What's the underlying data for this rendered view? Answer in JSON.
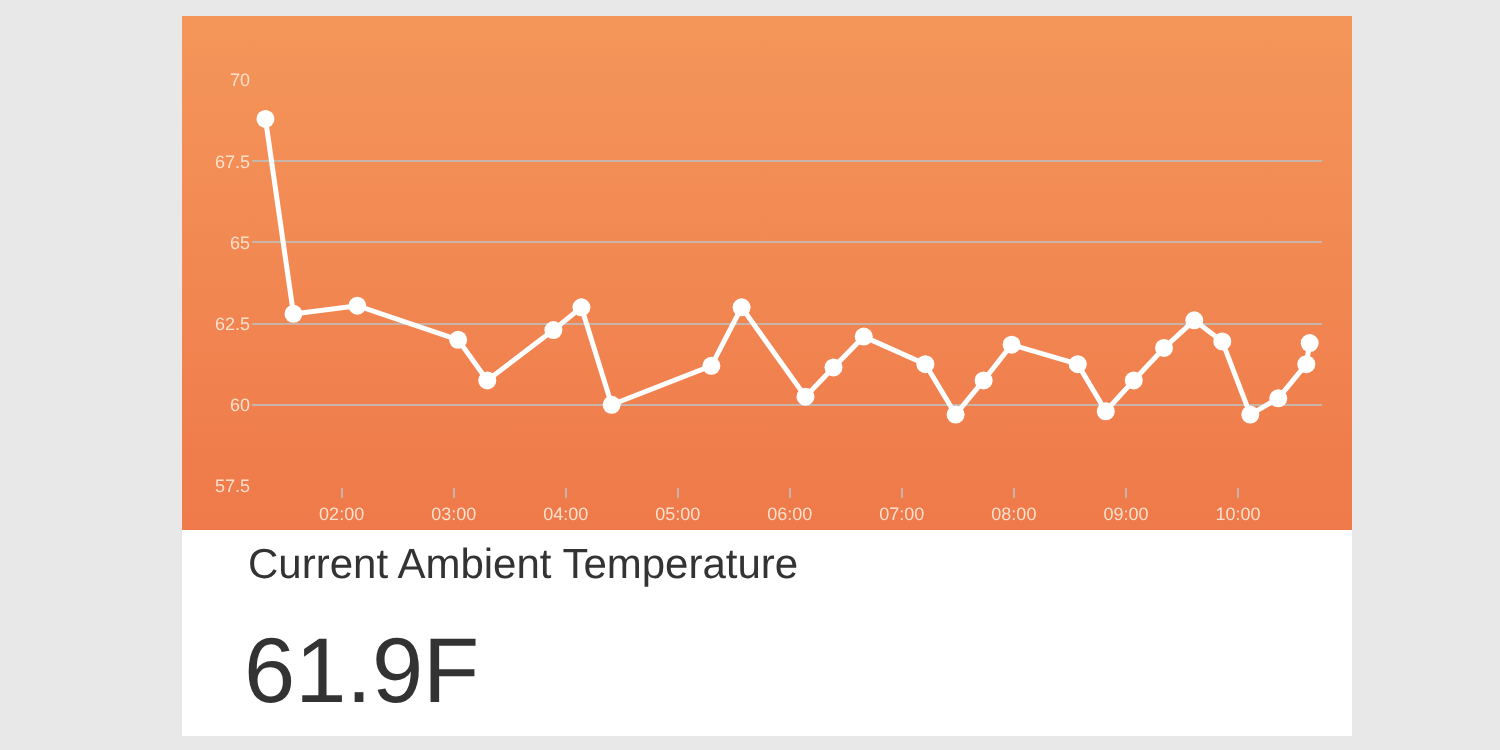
{
  "chart_data": {
    "type": "line",
    "annotations": [
      "Current Ambient Temperature",
      "61.9F"
    ],
    "x": [
      1.32,
      1.57,
      2.14,
      3.04,
      3.3,
      3.89,
      4.14,
      4.41,
      5.3,
      5.57,
      6.14,
      6.39,
      6.66,
      7.21,
      7.48,
      7.73,
      7.98,
      8.57,
      8.82,
      9.07,
      9.34,
      9.61,
      9.86,
      10.11,
      10.36,
      10.61,
      10.64
    ],
    "series": [
      {
        "color": "#ffffff",
        "values": [
          68.8,
          62.8,
          63.05,
          62.0,
          60.75,
          62.3,
          63.0,
          60.0,
          61.2,
          63.0,
          60.25,
          61.15,
          62.1,
          61.25,
          59.7,
          60.75,
          61.85,
          61.25,
          59.8,
          60.75,
          61.75,
          62.6,
          61.95,
          59.7,
          60.2,
          61.25,
          61.9
        ]
      }
    ],
    "xlim": [
      1.2,
      10.75
    ],
    "xticks": [
      {
        "value": 2,
        "label": "02:00"
      },
      {
        "value": 3,
        "label": "03:00"
      },
      {
        "value": 4,
        "label": "04:00"
      },
      {
        "value": 5,
        "label": "05:00"
      },
      {
        "value": 6,
        "label": "06:00"
      },
      {
        "value": 7,
        "label": "07:00"
      },
      {
        "value": 8,
        "label": "08:00"
      },
      {
        "value": 9,
        "label": "09:00"
      },
      {
        "value": 10,
        "label": "10:00"
      }
    ],
    "ylim": [
      57.5,
      70
    ],
    "yticks": [
      57.5,
      60,
      62.5,
      65,
      67.5,
      70
    ],
    "grid": "y",
    "legend": false,
    "marker": "circle",
    "line_style": "solid"
  }
}
